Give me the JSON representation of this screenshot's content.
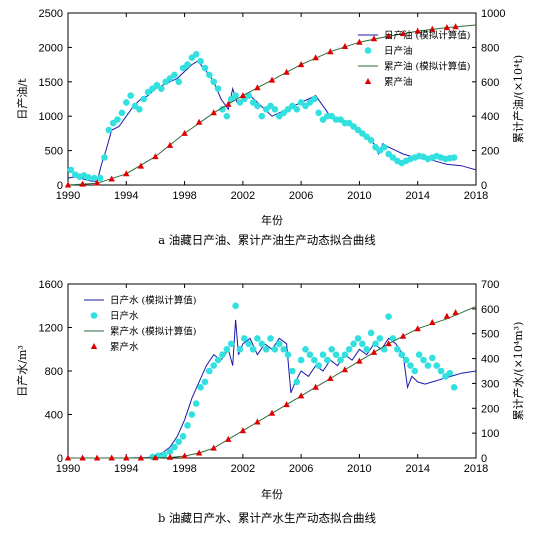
{
  "chart_data": [
    {
      "type": "line",
      "caption": "a 油藏日产油、累计产油生产动态拟合曲线",
      "xlabel": "年份",
      "ylabel": "日产油/t",
      "y2label": "累计产油/(×10⁴t)",
      "xlim": [
        1990,
        2018
      ],
      "xticks": [
        1990,
        1994,
        1998,
        2002,
        2006,
        2010,
        2014,
        2018
      ],
      "ylim": [
        0,
        2500
      ],
      "yticks": [
        0,
        500,
        1000,
        1500,
        2000,
        2500
      ],
      "y2lim": [
        0,
        1000
      ],
      "y2ticks": [
        0,
        200,
        400,
        600,
        800,
        1000
      ],
      "legend": [
        "日产油 (模拟计算值)",
        "日产油",
        "累产油 (模拟计算值)",
        "累产油"
      ],
      "series": [
        {
          "name": "日产油 (模拟计算值)",
          "axis": "left",
          "style": "line",
          "x": [
            1990.0,
            1990.5,
            1991.0,
            1991.5,
            1992.0,
            1992.3,
            1992.6,
            1993.0,
            1993.5,
            1994.0,
            1994.5,
            1995.0,
            1995.5,
            1996.0,
            1996.5,
            1997.0,
            1997.5,
            1998.0,
            1998.5,
            1998.9,
            1999.3,
            1999.7,
            2000.0,
            2000.5,
            2001.0,
            2001.3,
            2001.6,
            2002.0,
            2002.5,
            2003.0,
            2003.5,
            2004.0,
            2004.5,
            2005.0,
            2005.5,
            2006.0,
            2006.5,
            2007.0,
            2007.5,
            2008.0,
            2008.5,
            2009.0,
            2009.5,
            2010.0,
            2010.5,
            2011.0,
            2011.3,
            2011.6,
            2012.0,
            2012.5,
            2013.0,
            2013.5,
            2014.0,
            2014.5,
            2015.0,
            2015.5,
            2016.0,
            2016.5,
            2017.0,
            2017.5,
            2018.0
          ],
          "y": [
            100,
            120,
            90,
            60,
            50,
            300,
            500,
            800,
            850,
            1000,
            1150,
            1250,
            1300,
            1400,
            1450,
            1500,
            1550,
            1650,
            1750,
            1800,
            1700,
            1600,
            1500,
            1250,
            1100,
            1400,
            1200,
            1250,
            1300,
            1200,
            1100,
            1000,
            1050,
            1100,
            1150,
            1200,
            1250,
            1300,
            1150,
            1000,
            950,
            900,
            850,
            800,
            700,
            600,
            450,
            600,
            550,
            500,
            450,
            420,
            400,
            380,
            360,
            330,
            300,
            290,
            280,
            250,
            220
          ]
        },
        {
          "name": "日产油",
          "axis": "left",
          "style": "marker",
          "x": [
            1990.2,
            1990.5,
            1990.8,
            1991.1,
            1991.4,
            1991.8,
            1992.2,
            1992.5,
            1992.8,
            1993.1,
            1993.4,
            1993.7,
            1994.0,
            1994.3,
            1994.6,
            1994.9,
            1995.2,
            1995.5,
            1995.8,
            1996.1,
            1996.4,
            1996.7,
            1997.0,
            1997.3,
            1997.6,
            1997.9,
            1998.2,
            1998.5,
            1998.8,
            1999.1,
            1999.4,
            1999.7,
            2000.0,
            2000.3,
            2000.6,
            2000.9,
            2001.2,
            2001.5,
            2001.8,
            2002.1,
            2002.4,
            2002.7,
            2003.0,
            2003.3,
            2003.6,
            2003.9,
            2004.2,
            2004.5,
            2004.8,
            2005.1,
            2005.4,
            2005.7,
            2006.0,
            2006.3,
            2006.6,
            2006.9,
            2007.2,
            2007.5,
            2007.8,
            2008.1,
            2008.4,
            2008.7,
            2009.0,
            2009.3,
            2009.6,
            2009.9,
            2010.2,
            2010.5,
            2010.8,
            2011.1,
            2011.4,
            2011.7,
            2012.0,
            2012.3,
            2012.6,
            2012.9,
            2013.2,
            2013.5,
            2013.8,
            2014.1,
            2014.4,
            2014.7,
            2015.0,
            2015.3,
            2015.6,
            2015.9,
            2016.2,
            2016.5
          ],
          "y": [
            220,
            150,
            120,
            140,
            110,
            100,
            100,
            400,
            800,
            900,
            950,
            1050,
            1200,
            1300,
            1150,
            1100,
            1250,
            1350,
            1400,
            1450,
            1400,
            1500,
            1550,
            1600,
            1500,
            1700,
            1750,
            1850,
            1900,
            1800,
            1700,
            1600,
            1500,
            1400,
            1100,
            1000,
            1250,
            1300,
            1200,
            1250,
            1300,
            1200,
            1150,
            1000,
            1100,
            1150,
            1100,
            1000,
            1050,
            1100,
            1150,
            1100,
            1200,
            1150,
            1200,
            1250,
            1050,
            950,
            1000,
            1000,
            950,
            950,
            900,
            900,
            850,
            800,
            750,
            700,
            650,
            550,
            500,
            550,
            450,
            400,
            350,
            320,
            350,
            380,
            400,
            420,
            410,
            380,
            400,
            420,
            400,
            380,
            390,
            400
          ]
        },
        {
          "name": "累产油 (模拟计算值)",
          "axis": "right",
          "style": "line",
          "x": [
            1990,
            1992,
            1994,
            1996,
            1998,
            2000,
            2002,
            2004,
            2006,
            2008,
            2010,
            2012,
            2014,
            2016,
            2018
          ],
          "y": [
            0,
            10,
            65,
            165,
            300,
            420,
            520,
            610,
            700,
            775,
            830,
            865,
            895,
            915,
            930
          ]
        },
        {
          "name": "累产油",
          "axis": "right",
          "style": "marker",
          "x": [
            1990,
            1991,
            1992,
            1993,
            1994,
            1995,
            1996,
            1997,
            1998,
            1999,
            2000,
            2001,
            2002,
            2003,
            2004,
            2005,
            2006,
            2007,
            2008,
            2009,
            2010,
            2011,
            2012,
            2013,
            2014,
            2015,
            2016,
            2016.6
          ],
          "y": [
            0,
            5,
            12,
            35,
            65,
            110,
            165,
            230,
            300,
            365,
            420,
            470,
            520,
            565,
            610,
            655,
            700,
            740,
            775,
            805,
            830,
            850,
            865,
            880,
            895,
            905,
            915,
            920
          ]
        }
      ]
    },
    {
      "type": "line",
      "caption": "b 油藏日产水、累计产水生产动态拟合曲线",
      "xlabel": "年份",
      "ylabel": "日产水/m³",
      "y2label": "累计产水/(×10⁴m³)",
      "xlim": [
        1990,
        2018
      ],
      "xticks": [
        1990,
        1994,
        1998,
        2002,
        2006,
        2010,
        2014,
        2018
      ],
      "ylim": [
        0,
        1600
      ],
      "yticks": [
        0,
        400,
        800,
        1200,
        1600
      ],
      "y2lim": [
        0,
        700
      ],
      "y2ticks": [
        0,
        100,
        200,
        300,
        400,
        500,
        600,
        700
      ],
      "legend": [
        "日产水 (模拟计算值)",
        "日产水",
        "累产水 (模拟计算值)",
        "累产水"
      ],
      "series": [
        {
          "name": "日产水 (模拟计算值)",
          "axis": "left",
          "style": "line",
          "x": [
            1990.0,
            1992.0,
            1994.0,
            1995.5,
            1996.0,
            1996.5,
            1997.0,
            1997.5,
            1998.0,
            1998.5,
            1999.0,
            1999.5,
            2000.0,
            2000.5,
            2001.0,
            2001.3,
            2001.5,
            2001.7,
            2002.0,
            2002.5,
            2003.0,
            2003.5,
            2004.0,
            2004.5,
            2005.0,
            2005.3,
            2005.6,
            2006.0,
            2006.5,
            2007.0,
            2007.5,
            2008.0,
            2008.5,
            2009.0,
            2009.5,
            2010.0,
            2010.5,
            2011.0,
            2011.5,
            2012.0,
            2012.5,
            2013.0,
            2013.3,
            2013.6,
            2014.0,
            2014.5,
            2015.0,
            2015.5,
            2016.0,
            2016.5,
            2017.0,
            2017.5,
            2018.0
          ],
          "y": [
            0,
            0,
            0,
            5,
            20,
            50,
            100,
            200,
            350,
            550,
            700,
            850,
            950,
            900,
            1000,
            850,
            1270,
            950,
            1050,
            1100,
            950,
            1050,
            1000,
            1100,
            1050,
            600,
            700,
            800,
            750,
            850,
            800,
            900,
            850,
            950,
            900,
            1000,
            950,
            1050,
            1000,
            1100,
            1050,
            950,
            650,
            750,
            700,
            680,
            700,
            720,
            740,
            760,
            780,
            790,
            800
          ]
        },
        {
          "name": "日产水",
          "axis": "left",
          "style": "marker",
          "x": [
            1995.8,
            1996.2,
            1996.6,
            1997.0,
            1997.3,
            1997.6,
            1997.9,
            1998.2,
            1998.5,
            1998.8,
            1999.1,
            1999.4,
            1999.7,
            2000.0,
            2000.3,
            2000.6,
            2000.9,
            2001.2,
            2001.5,
            2001.8,
            2002.1,
            2002.4,
            2002.7,
            2003.0,
            2003.3,
            2003.6,
            2003.9,
            2004.2,
            2004.5,
            2004.8,
            2005.1,
            2005.4,
            2005.7,
            2006.0,
            2006.3,
            2006.6,
            2006.9,
            2007.2,
            2007.5,
            2007.8,
            2008.1,
            2008.4,
            2008.7,
            2009.0,
            2009.3,
            2009.6,
            2009.9,
            2010.2,
            2010.5,
            2010.8,
            2011.1,
            2011.4,
            2011.7,
            2012.0,
            2012.3,
            2012.6,
            2012.9,
            2013.2,
            2013.5,
            2013.8,
            2014.1,
            2014.4,
            2014.7,
            2015.0,
            2015.3,
            2015.6,
            2015.9,
            2016.2,
            2016.5
          ],
          "y": [
            10,
            20,
            30,
            60,
            100,
            150,
            200,
            300,
            400,
            500,
            650,
            700,
            800,
            850,
            900,
            950,
            1000,
            1050,
            1400,
            1000,
            1100,
            1050,
            1000,
            1100,
            1050,
            1000,
            1100,
            1000,
            1050,
            1000,
            950,
            800,
            700,
            900,
            1000,
            950,
            900,
            850,
            950,
            900,
            1000,
            950,
            900,
            950,
            1000,
            1050,
            1100,
            1050,
            1000,
            1150,
            1050,
            1100,
            1000,
            1300,
            1100,
            1000,
            950,
            900,
            850,
            800,
            950,
            900,
            850,
            920,
            850,
            800,
            750,
            780,
            650
          ]
        },
        {
          "name": "累产水 (模拟计算值)",
          "axis": "right",
          "style": "line",
          "x": [
            1990,
            1995,
            1997,
            1998,
            1999,
            2000,
            2002,
            2004,
            2006,
            2008,
            2010,
            2012,
            2014,
            2016,
            2018
          ],
          "y": [
            0,
            0,
            2,
            8,
            20,
            40,
            110,
            180,
            250,
            320,
            390,
            460,
            520,
            560,
            610
          ]
        },
        {
          "name": "累产水",
          "axis": "right",
          "style": "marker",
          "x": [
            1990,
            1991,
            1992,
            1993,
            1994,
            1995,
            1996,
            1997,
            1998,
            1999,
            2000,
            2001,
            2002,
            2003,
            2004,
            2005,
            2006,
            2007,
            2008,
            2009,
            2010,
            2011,
            2012,
            2013,
            2014,
            2015,
            2016,
            2016.6
          ],
          "y": [
            0,
            0,
            0,
            0,
            0,
            0,
            1,
            3,
            8,
            20,
            40,
            75,
            110,
            145,
            180,
            215,
            250,
            285,
            320,
            355,
            390,
            425,
            460,
            490,
            520,
            545,
            570,
            585
          ]
        }
      ]
    }
  ]
}
